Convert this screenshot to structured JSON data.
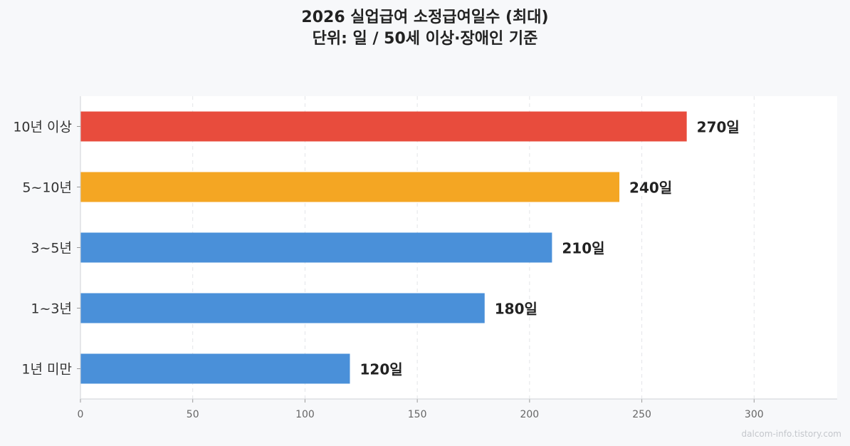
{
  "chart_data": {
    "type": "bar",
    "orientation": "horizontal",
    "title": "2026 실업급여 소정급여일수 (최대)",
    "subtitle": "단위: 일 / 50세 이상·장애인 기준",
    "categories": [
      "10년 이상",
      "5~10년",
      "3~5년",
      "1~3년",
      "1년 미만"
    ],
    "values": [
      270,
      240,
      210,
      180,
      120
    ],
    "data_labels": [
      "270일",
      "240일",
      "210일",
      "180일",
      "120일"
    ],
    "bar_colors": [
      "#e84c3d",
      "#f4a623",
      "#4a90d9",
      "#4a90d9",
      "#4a90d9"
    ],
    "xlim": [
      0,
      337
    ],
    "xticks": [
      0,
      50,
      100,
      150,
      200,
      250,
      300
    ],
    "grid": "vertical-dashed",
    "xlabel": "",
    "ylabel": ""
  },
  "watermark": "dalcom-info.tistory.com"
}
